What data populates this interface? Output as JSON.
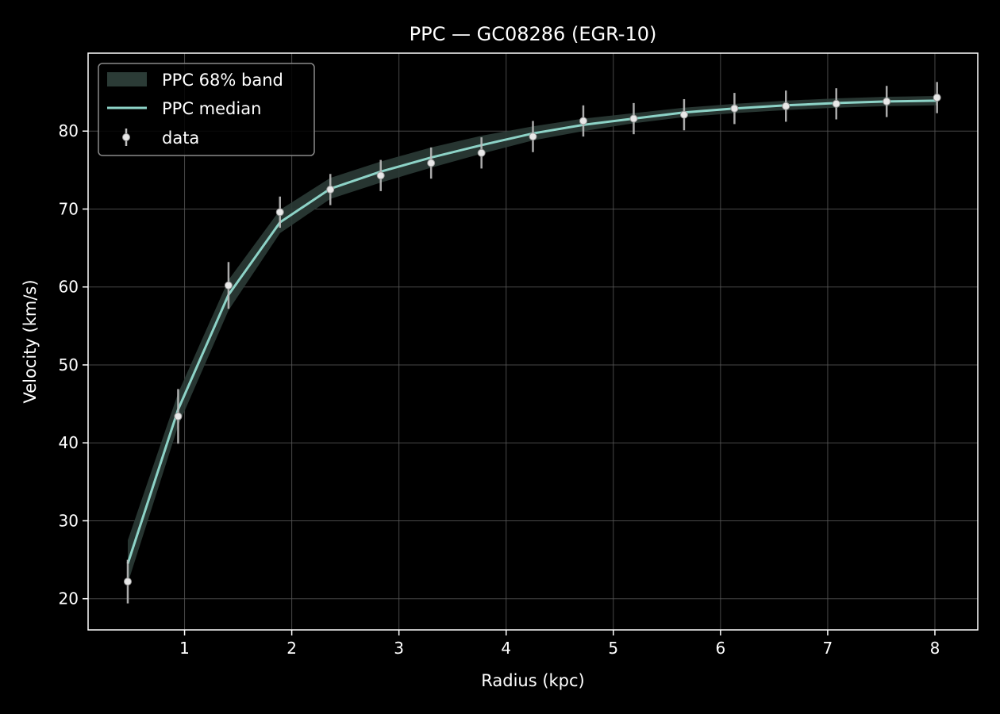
{
  "chart_data": {
    "type": "line",
    "title": "PPC — GC08286 (EGR-10)",
    "xlabel": "Radius (kpc)",
    "ylabel": "Velocity (km/s)",
    "xlim": [
      0.1,
      8.4
    ],
    "ylim": [
      16,
      90
    ],
    "xticks": [
      1,
      2,
      3,
      4,
      5,
      6,
      7,
      8
    ],
    "yticks": [
      20,
      30,
      40,
      50,
      60,
      70,
      80
    ],
    "grid": true,
    "legend_position": "top-left",
    "colors": {
      "background": "#000000",
      "median": "#8dd3c7",
      "band": "#2b3b36",
      "data": "#e8e8e8",
      "errorbar": "#bdbdbd",
      "grid": "#5a5a5a"
    },
    "legend": {
      "band_label": "PPC 68% band",
      "median_label": "PPC median",
      "data_label": "data"
    },
    "series": [
      {
        "name": "PPC median",
        "kind": "line",
        "x": [
          0.47,
          0.94,
          1.41,
          1.89,
          2.36,
          2.83,
          3.3,
          3.77,
          4.25,
          4.72,
          5.19,
          5.66,
          6.13,
          6.61,
          7.08,
          7.55,
          8.02
        ],
        "y": [
          24.5,
          44.3,
          59.0,
          68.3,
          72.6,
          74.8,
          76.6,
          78.2,
          79.7,
          80.8,
          81.6,
          82.4,
          82.9,
          83.3,
          83.6,
          83.8,
          83.9
        ]
      },
      {
        "name": "PPC 68% band",
        "kind": "band",
        "x": [
          0.47,
          0.94,
          1.41,
          1.89,
          2.36,
          2.83,
          3.3,
          3.77,
          4.25,
          4.72,
          5.19,
          5.66,
          6.13,
          6.61,
          7.08,
          7.55,
          8.02
        ],
        "lower": [
          22.0,
          42.2,
          57.0,
          66.9,
          71.3,
          73.4,
          75.3,
          77.1,
          78.8,
          80.0,
          81.0,
          81.8,
          82.3,
          82.7,
          83.0,
          83.2,
          83.3
        ],
        "upper": [
          27.5,
          46.4,
          60.9,
          69.9,
          74.0,
          76.1,
          77.9,
          79.4,
          80.6,
          81.6,
          82.3,
          83.0,
          83.5,
          83.9,
          84.2,
          84.4,
          84.5
        ]
      },
      {
        "name": "data",
        "kind": "errorbar",
        "x": [
          0.47,
          0.94,
          1.41,
          1.89,
          2.36,
          2.83,
          3.3,
          3.77,
          4.25,
          4.72,
          5.19,
          5.66,
          6.13,
          6.61,
          7.08,
          7.55,
          8.02
        ],
        "y": [
          22.2,
          43.4,
          60.2,
          69.6,
          72.5,
          74.3,
          75.9,
          77.2,
          79.3,
          81.3,
          81.6,
          82.1,
          82.9,
          83.2,
          83.5,
          83.8,
          84.3
        ],
        "yerr": [
          2.8,
          3.5,
          3.0,
          2.0,
          2.0,
          2.0,
          2.0,
          2.0,
          2.0,
          2.0,
          2.0,
          2.0,
          2.0,
          2.0,
          2.0,
          2.0,
          2.0
        ]
      }
    ]
  }
}
